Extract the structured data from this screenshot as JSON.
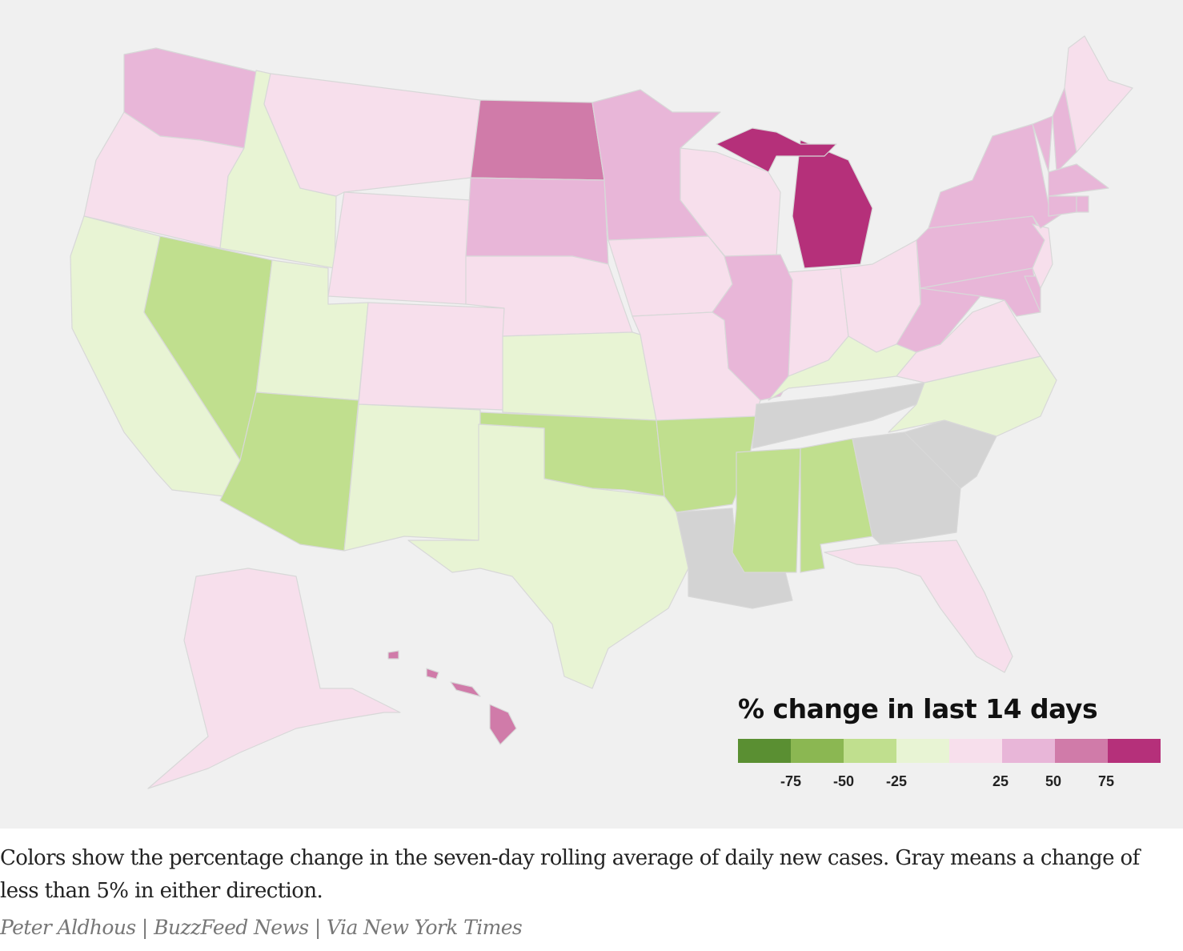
{
  "legend": {
    "title": "% change in last 14 days",
    "bins": [
      {
        "id": "g4",
        "color": "#5a8f32"
      },
      {
        "id": "g3",
        "color": "#8bb752"
      },
      {
        "id": "g2",
        "color": "#c0df8e"
      },
      {
        "id": "g1",
        "color": "#e8f4d4"
      },
      {
        "id": "p1",
        "color": "#f7dfec"
      },
      {
        "id": "p2",
        "color": "#e8b6d8"
      },
      {
        "id": "p3",
        "color": "#d07ba9"
      },
      {
        "id": "p4",
        "color": "#b5307a"
      }
    ],
    "ticks": [
      "-75",
      "-50",
      "-25",
      "25",
      "50",
      "75"
    ],
    "gray_color": "#d3d3d3"
  },
  "states": {
    "WA": "p2",
    "OR": "p1",
    "CA": "g1",
    "ID": "g1",
    "NV": "g2",
    "UT": "g1",
    "AZ": "g2",
    "MT": "p1",
    "WY": "p1",
    "CO": "p1",
    "NM": "g1",
    "ND": "p3",
    "SD": "p2",
    "NE": "p1",
    "KS": "g1",
    "OK": "g2",
    "TX": "g1",
    "MN": "p2",
    "IA": "p1",
    "MO": "p1",
    "AR": "g2",
    "LA": "gray",
    "WI": "p1",
    "IL": "p2",
    "MI": "p4",
    "IN": "p1",
    "OH": "p1",
    "KY": "g1",
    "TN": "gray",
    "MS": "g2",
    "AL": "g2",
    "GA": "gray",
    "FL": "p1",
    "SC": "gray",
    "NC": "g1",
    "VA": "p1",
    "WV": "p2",
    "MD": "p2",
    "DE": "p2",
    "PA": "p2",
    "NJ": "p1",
    "NY": "p2",
    "VT": "p2",
    "NH": "p2",
    "ME": "p1",
    "MA": "p2",
    "CT": "p2",
    "RI": "p2",
    "AK": "p1",
    "HI": "p3"
  },
  "caption": "Colors show the percentage change in the seven-day rolling average of daily new cases. Gray means a change of less than 5% in either direction.",
  "credit": "Peter Aldhous | BuzzFeed News | Via New York Times"
}
